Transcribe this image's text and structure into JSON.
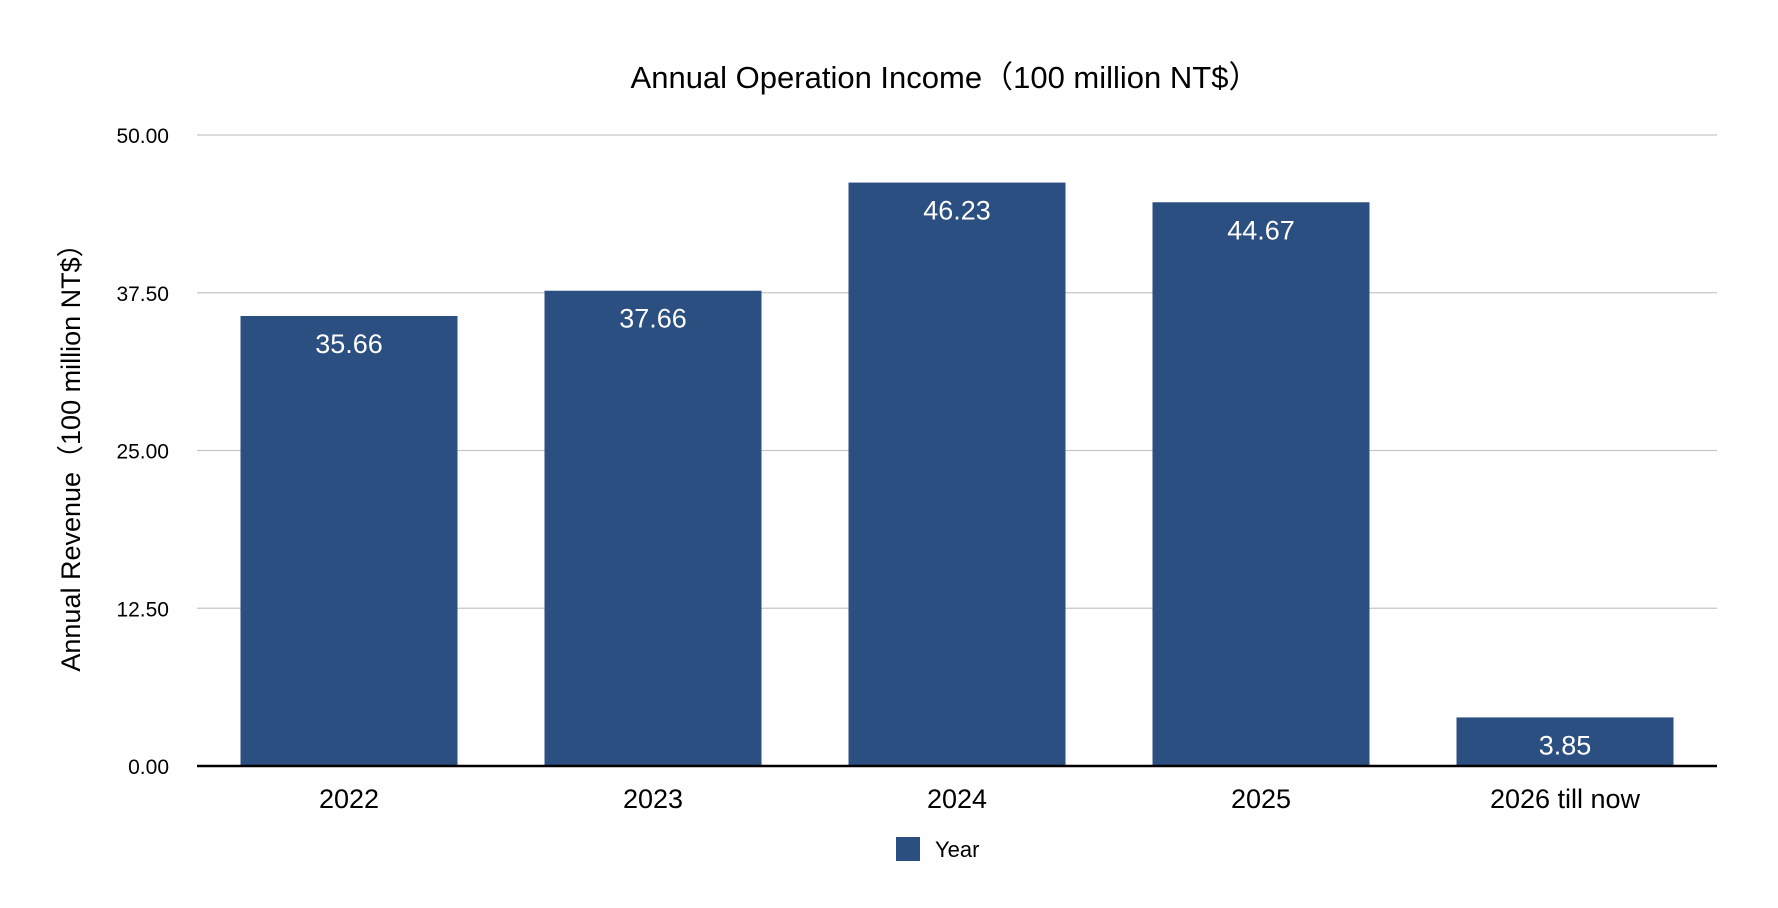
{
  "chart_data": {
    "type": "bar",
    "title": "Annual Operation Income（100 million NT$）",
    "xlabel": "",
    "ylabel": "Annual Revenue（100 million NT$）",
    "categories": [
      "2022",
      "2023",
      "2024",
      "2025",
      "2026 till now"
    ],
    "series": [
      {
        "name": "Year",
        "values": [
          35.66,
          37.66,
          46.23,
          44.67,
          3.85
        ],
        "labels": [
          "35.66",
          "37.66",
          "46.23",
          "44.67",
          "3.85"
        ]
      }
    ],
    "ylim": [
      0,
      50
    ],
    "yticks": [
      "0.00",
      "12.50",
      "25.00",
      "37.50",
      "50.00"
    ],
    "ytick_values": [
      0,
      12.5,
      25,
      37.5,
      50
    ],
    "grid": true,
    "legend": "bottom-center",
    "colors": {
      "bar": "#2b4f80",
      "grid": "#c6c6c6",
      "axis": "#000000"
    }
  }
}
